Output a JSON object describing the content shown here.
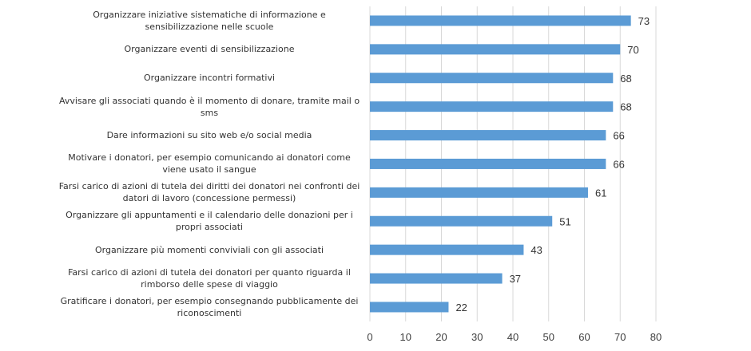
{
  "chart_data": {
    "type": "bar",
    "orientation": "horizontal",
    "categories": [
      "Organizzare iniziative sistematiche di informazione e sensibilizzazione nelle scuole",
      "Organizzare eventi di sensibilizzazione",
      "Organizzare incontri formativi",
      "Avvisare gli associati quando è il momento di donare, tramite mail o sms",
      "Dare informazioni su sito web e/o social media",
      "Motivare i donatori, per esempio comunicando ai donatori come viene usato il sangue",
      "Farsi carico di azioni di tutela dei diritti dei donatori nei confronti dei datori di lavoro (concessione permessi)",
      "Organizzare gli appuntamenti e il calendario delle donazioni per i propri associati",
      "Organizzare più momenti conviviali con gli associati",
      "Farsi carico di azioni di tutela dei donatori per quanto riguarda il rimborso delle spese di viaggio",
      "Gratificare i donatori, per esempio consegnando pubblicamente dei riconoscimenti"
    ],
    "label_lines": [
      [
        "Organizzare iniziative sistematiche di informazione e",
        "sensibilizzazione nelle scuole"
      ],
      [
        "Organizzare eventi di sensibilizzazione"
      ],
      [
        "Organizzare incontri formativi"
      ],
      [
        "Avvisare gli associati quando è il momento di donare, tramite mail o",
        "sms"
      ],
      [
        "Dare informazioni su sito web e/o social media"
      ],
      [
        "Motivare i donatori, per esempio comunicando ai donatori come",
        "viene usato il sangue"
      ],
      [
        "Farsi carico di azioni di tutela dei diritti dei donatori nei confronti dei",
        "datori di lavoro (concessione permessi)"
      ],
      [
        "Organizzare gli appuntamenti e il calendario delle donazioni per i",
        "propri associati"
      ],
      [
        "Organizzare più momenti conviviali con gli associati"
      ],
      [
        "Farsi carico di azioni di tutela dei donatori per quanto riguarda il",
        "rimborso delle spese di viaggio"
      ],
      [
        "Gratificare i donatori, per esempio consegnando pubblicamente dei",
        "riconoscimenti"
      ]
    ],
    "values": [
      73,
      70,
      68,
      68,
      66,
      66,
      61,
      51,
      43,
      37,
      22
    ],
    "xlim": [
      0,
      80
    ],
    "xticks": [
      0,
      10,
      20,
      30,
      40,
      50,
      60,
      70,
      80
    ],
    "grid": true,
    "bar_color": "#5b9bd5",
    "title": "",
    "xlabel": "",
    "ylabel": ""
  }
}
